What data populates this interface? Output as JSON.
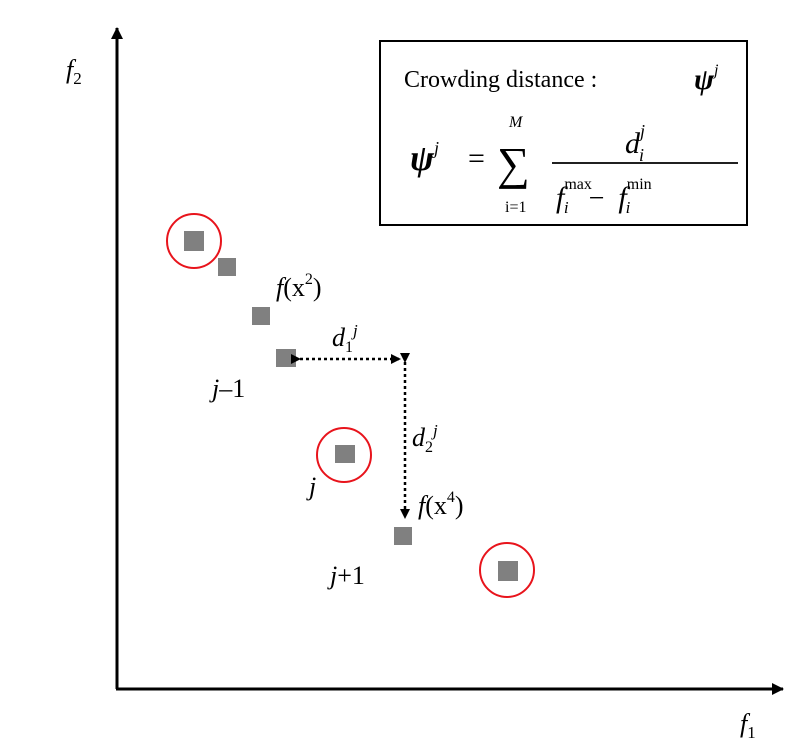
{
  "axes": {
    "x_label": "f",
    "x_label_sub": "1",
    "y_label": "f",
    "y_label_sub": "2"
  },
  "formula_box": {
    "title": "Crowding distance :",
    "title_symbol": "ψ",
    "title_symbol_sup": "j",
    "lhs_symbol": "ψ",
    "lhs_sup": "j",
    "equals": "=",
    "sigma": "∑",
    "sum_upper": "M",
    "sum_lower": "i=1",
    "numerator": "d",
    "numerator_sub": "i",
    "numerator_sup": "j",
    "denominator_f1": "f",
    "denominator_f1_sub": "i",
    "denominator_f1_sup": "max",
    "minus": "−",
    "denominator_f2": "f",
    "denominator_f2_sub": "i",
    "denominator_f2_sup": "min"
  },
  "labels": {
    "x2_f": "f",
    "x2_paren": "(x",
    "x2_sup": "2",
    "x2_close": ")",
    "x4_f": "f",
    "x4_paren": "(x",
    "x4_sup": "4",
    "x4_close": ")",
    "d1": "d",
    "d1_sub": "1",
    "d1_sup": "j",
    "d2": "d",
    "d2_sub": "2",
    "d2_sup": "j",
    "jm1_j": "j",
    "jm1_rest": "–1",
    "j": "j",
    "jp1_j": "j",
    "jp1_rest": "+1"
  },
  "colors": {
    "point": "#808080",
    "circle": "#e8141c",
    "axis": "#000000"
  }
}
